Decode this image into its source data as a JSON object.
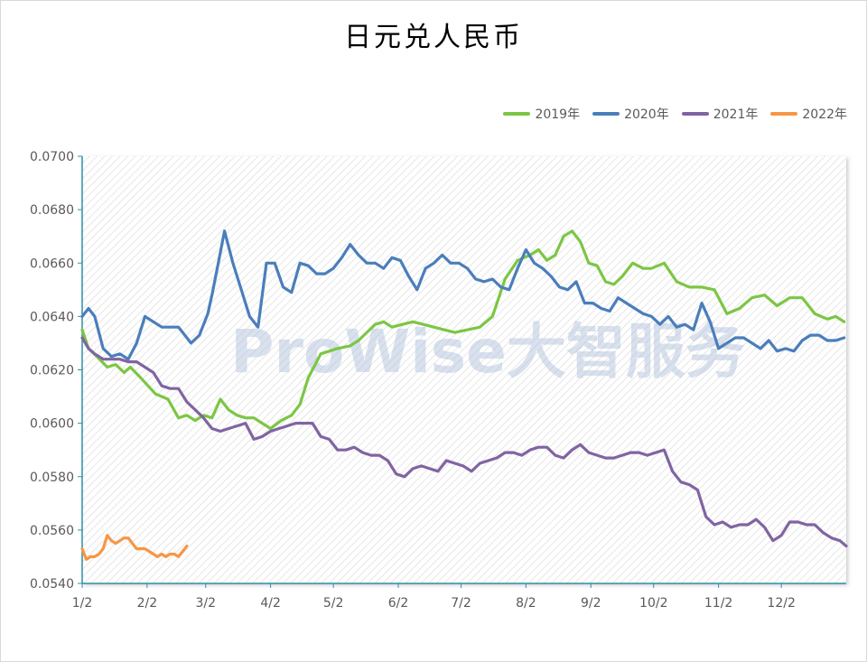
{
  "chart_data": {
    "type": "line",
    "title": "日元兑人民币",
    "xlabel": "",
    "ylabel": "",
    "ylim": [
      0.054,
      0.07
    ],
    "yticks": [
      "0.0700",
      "0.0680",
      "0.0660",
      "0.0640",
      "0.0620",
      "0.0600",
      "0.0580",
      "0.0560",
      "0.0540"
    ],
    "ytick_values": [
      0.07,
      0.068,
      0.066,
      0.064,
      0.062,
      0.06,
      0.058,
      0.056,
      0.054
    ],
    "xticks": [
      "1/2",
      "2/2",
      "3/2",
      "4/2",
      "5/2",
      "6/2",
      "7/2",
      "8/2",
      "9/2",
      "10/2",
      "11/2",
      "12/2"
    ],
    "xtick_days": [
      2,
      33,
      61,
      92,
      122,
      153,
      183,
      214,
      245,
      275,
      306,
      336
    ],
    "xlim_days": [
      2,
      367
    ],
    "legend_position": "top-right",
    "grid": false,
    "watermark": "ProWise大智服务",
    "series": [
      {
        "name": "2019年",
        "color": "#7cc644",
        "x": [
          2,
          5,
          9,
          14,
          18,
          22,
          25,
          30,
          37,
          43,
          48,
          52,
          56,
          60,
          64,
          68,
          72,
          76,
          80,
          84,
          88,
          92,
          97,
          102,
          106,
          110,
          116,
          120,
          124,
          130,
          134,
          138,
          142,
          146,
          150,
          155,
          160,
          165,
          170,
          175,
          180,
          186,
          192,
          198,
          204,
          210,
          216,
          220,
          224,
          228,
          232,
          236,
          240,
          244,
          248,
          252,
          256,
          260,
          265,
          270,
          274,
          280,
          286,
          292,
          298,
          304,
          310,
          316,
          322,
          328,
          334,
          340,
          346,
          352,
          358,
          362,
          366
        ],
        "y": [
          0.0635,
          0.0628,
          0.0625,
          0.0621,
          0.0622,
          0.0619,
          0.0621,
          0.0617,
          0.0611,
          0.0609,
          0.0602,
          0.0603,
          0.0601,
          0.0603,
          0.0602,
          0.0609,
          0.0605,
          0.0603,
          0.0602,
          0.0602,
          0.06,
          0.0598,
          0.0601,
          0.0603,
          0.0607,
          0.0617,
          0.0626,
          0.0627,
          0.0628,
          0.0629,
          0.0631,
          0.0634,
          0.0637,
          0.0638,
          0.0636,
          0.0637,
          0.0638,
          0.0637,
          0.0636,
          0.0635,
          0.0634,
          0.0635,
          0.0636,
          0.064,
          0.0654,
          0.0661,
          0.0663,
          0.0665,
          0.0661,
          0.0663,
          0.067,
          0.0672,
          0.0668,
          0.066,
          0.0659,
          0.0653,
          0.0652,
          0.0655,
          0.066,
          0.0658,
          0.0658,
          0.066,
          0.0653,
          0.0651,
          0.0651,
          0.065,
          0.0641,
          0.0643,
          0.0647,
          0.0648,
          0.0644,
          0.0647,
          0.0647,
          0.0641,
          0.0639,
          0.064,
          0.0638
        ]
      },
      {
        "name": "2020年",
        "color": "#4a7ebb",
        "x": [
          2,
          5,
          8,
          12,
          16,
          20,
          24,
          28,
          32,
          36,
          40,
          44,
          48,
          50,
          54,
          58,
          62,
          64,
          67,
          70,
          74,
          78,
          82,
          86,
          90,
          94,
          98,
          102,
          106,
          110,
          114,
          118,
          122,
          126,
          130,
          134,
          138,
          142,
          146,
          150,
          154,
          158,
          162,
          166,
          170,
          174,
          178,
          182,
          186,
          190,
          194,
          198,
          202,
          206,
          210,
          214,
          218,
          222,
          226,
          230,
          234,
          238,
          242,
          246,
          250,
          254,
          258,
          262,
          266,
          270,
          274,
          278,
          282,
          286,
          290,
          294,
          298,
          302,
          306,
          310,
          314,
          318,
          322,
          326,
          330,
          334,
          338,
          342,
          346,
          350,
          354,
          358,
          362,
          366
        ],
        "y": [
          0.064,
          0.0643,
          0.064,
          0.0628,
          0.0625,
          0.0626,
          0.0624,
          0.063,
          0.064,
          0.0638,
          0.0636,
          0.0636,
          0.0636,
          0.0634,
          0.063,
          0.0633,
          0.0641,
          0.0648,
          0.066,
          0.0672,
          0.066,
          0.065,
          0.064,
          0.0636,
          0.066,
          0.066,
          0.0651,
          0.0649,
          0.066,
          0.0659,
          0.0656,
          0.0656,
          0.0658,
          0.0662,
          0.0667,
          0.0663,
          0.066,
          0.066,
          0.0658,
          0.0662,
          0.0661,
          0.0655,
          0.065,
          0.0658,
          0.066,
          0.0663,
          0.066,
          0.066,
          0.0658,
          0.0654,
          0.0653,
          0.0654,
          0.0651,
          0.065,
          0.0658,
          0.0665,
          0.066,
          0.0658,
          0.0655,
          0.0651,
          0.065,
          0.0653,
          0.0645,
          0.0645,
          0.0643,
          0.0642,
          0.0647,
          0.0645,
          0.0643,
          0.0641,
          0.064,
          0.0637,
          0.064,
          0.0636,
          0.0637,
          0.0635,
          0.0645,
          0.0638,
          0.0628,
          0.063,
          0.0632,
          0.0632,
          0.063,
          0.0628,
          0.0631,
          0.0627,
          0.0628,
          0.0627,
          0.0631,
          0.0633,
          0.0633,
          0.0631,
          0.0631,
          0.0632
        ]
      },
      {
        "name": "2021年",
        "color": "#8064a2",
        "x": [
          2,
          5,
          8,
          12,
          16,
          20,
          24,
          28,
          32,
          36,
          40,
          44,
          48,
          52,
          56,
          60,
          64,
          68,
          72,
          76,
          80,
          84,
          88,
          92,
          96,
          100,
          104,
          108,
          112,
          116,
          120,
          124,
          128,
          132,
          136,
          140,
          144,
          148,
          152,
          156,
          160,
          164,
          168,
          172,
          176,
          180,
          184,
          188,
          192,
          196,
          200,
          204,
          208,
          212,
          216,
          220,
          224,
          228,
          232,
          236,
          240,
          244,
          248,
          252,
          256,
          260,
          264,
          268,
          272,
          276,
          280,
          284,
          288,
          292,
          296,
          300,
          304,
          308,
          312,
          316,
          320,
          324,
          328,
          332,
          336,
          340,
          344,
          348,
          352,
          356,
          360,
          364,
          367
        ],
        "y": [
          0.0632,
          0.0628,
          0.0626,
          0.0624,
          0.0624,
          0.0624,
          0.0623,
          0.0623,
          0.0621,
          0.0619,
          0.0614,
          0.0613,
          0.0613,
          0.0608,
          0.0605,
          0.0602,
          0.0598,
          0.0597,
          0.0598,
          0.0599,
          0.06,
          0.0594,
          0.0595,
          0.0597,
          0.0598,
          0.0599,
          0.06,
          0.06,
          0.06,
          0.0595,
          0.0594,
          0.059,
          0.059,
          0.0591,
          0.0589,
          0.0588,
          0.0588,
          0.0586,
          0.0581,
          0.058,
          0.0583,
          0.0584,
          0.0583,
          0.0582,
          0.0586,
          0.0585,
          0.0584,
          0.0582,
          0.0585,
          0.0586,
          0.0587,
          0.0589,
          0.0589,
          0.0588,
          0.059,
          0.0591,
          0.0591,
          0.0588,
          0.0587,
          0.059,
          0.0592,
          0.0589,
          0.0588,
          0.0587,
          0.0587,
          0.0588,
          0.0589,
          0.0589,
          0.0588,
          0.0589,
          0.059,
          0.0582,
          0.0578,
          0.0577,
          0.0575,
          0.0565,
          0.0562,
          0.0563,
          0.0561,
          0.0562,
          0.0562,
          0.0564,
          0.0561,
          0.0556,
          0.0558,
          0.0563,
          0.0563,
          0.0562,
          0.0562,
          0.0559,
          0.0557,
          0.0556,
          0.0554
        ]
      },
      {
        "name": "2022年",
        "color": "#f79646",
        "x": [
          2,
          4,
          6,
          8,
          10,
          12,
          14,
          16,
          18,
          20,
          22,
          24,
          26,
          28,
          30,
          32,
          34,
          36,
          38,
          40,
          42,
          44,
          46,
          48,
          50,
          52
        ],
        "y": [
          0.0553,
          0.0549,
          0.055,
          0.055,
          0.0551,
          0.0553,
          0.0558,
          0.0556,
          0.0555,
          0.0556,
          0.0557,
          0.0557,
          0.0555,
          0.0553,
          0.0553,
          0.0553,
          0.0552,
          0.0551,
          0.055,
          0.0551,
          0.055,
          0.0551,
          0.0551,
          0.055,
          0.0552,
          0.0554
        ]
      }
    ]
  }
}
